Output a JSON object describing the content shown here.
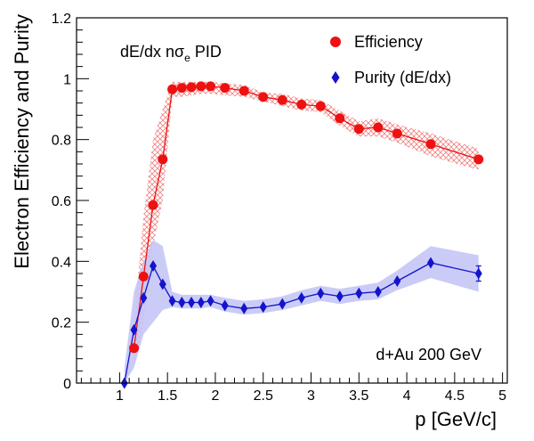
{
  "chart_data": {
    "type": "line",
    "title": "",
    "annotation_top": "dE/dx nσ",
    "annotation_top_sub": "e",
    "annotation_top_suffix": " PID",
    "annotation_bottom": "d+Au 200 GeV",
    "xlabel": "p [GeV/c]",
    "ylabel": "Electron Efficiency and Purity",
    "xlim": [
      0.55,
      5.05
    ],
    "ylim": [
      0,
      1.2
    ],
    "x_ticks": [
      1,
      1.5,
      2,
      2.5,
      3,
      3.5,
      4,
      4.5,
      5
    ],
    "x_tick_labels": [
      "1",
      "1.5",
      "2",
      "2.5",
      "3",
      "3.5",
      "4",
      "4.5",
      "5"
    ],
    "y_ticks": [
      0,
      0.2,
      0.4,
      0.6,
      0.8,
      1,
      1.2
    ],
    "y_tick_labels": [
      "0",
      "0.2",
      "0.4",
      "0.6",
      "0.8",
      "1",
      "1.2"
    ],
    "grid": false,
    "legend_position": "top-right",
    "series": [
      {
        "name": "Efficiency",
        "color": "#ee1111",
        "marker": "circle",
        "band_style": "hatched",
        "x": [
          1.15,
          1.25,
          1.35,
          1.45,
          1.55,
          1.65,
          1.75,
          1.85,
          1.95,
          2.1,
          2.3,
          2.5,
          2.7,
          2.9,
          3.1,
          3.3,
          3.5,
          3.7,
          3.9,
          4.25,
          4.75
        ],
        "y": [
          0.115,
          0.35,
          0.585,
          0.735,
          0.965,
          0.97,
          0.972,
          0.975,
          0.975,
          0.97,
          0.96,
          0.94,
          0.93,
          0.915,
          0.91,
          0.87,
          0.835,
          0.84,
          0.82,
          0.785,
          0.735
        ],
        "band_low": [
          0.05,
          0.2,
          0.45,
          0.6,
          0.94,
          0.94,
          0.945,
          0.95,
          0.95,
          0.945,
          0.94,
          0.925,
          0.91,
          0.895,
          0.89,
          0.845,
          0.81,
          0.81,
          0.79,
          0.745,
          0.7
        ],
        "band_high": [
          0.2,
          0.55,
          0.8,
          0.9,
          0.99,
          0.99,
          0.99,
          0.99,
          0.99,
          0.985,
          0.98,
          0.955,
          0.95,
          0.935,
          0.93,
          0.895,
          0.86,
          0.87,
          0.85,
          0.82,
          0.77
        ]
      },
      {
        "name": "Purity (dE/dx)",
        "color": "#1414cc",
        "marker": "diamond",
        "band_style": "filled",
        "x": [
          1.05,
          1.15,
          1.25,
          1.35,
          1.45,
          1.55,
          1.65,
          1.75,
          1.85,
          1.95,
          2.1,
          2.3,
          2.5,
          2.7,
          2.9,
          3.1,
          3.3,
          3.5,
          3.7,
          3.9,
          4.25,
          4.75
        ],
        "y": [
          0.0,
          0.175,
          0.28,
          0.385,
          0.325,
          0.27,
          0.265,
          0.265,
          0.265,
          0.27,
          0.255,
          0.245,
          0.25,
          0.26,
          0.28,
          0.295,
          0.285,
          0.295,
          0.3,
          0.335,
          0.395,
          0.36
        ],
        "band_low": [
          0.0,
          0.05,
          0.16,
          0.2,
          0.24,
          0.25,
          0.245,
          0.245,
          0.245,
          0.25,
          0.235,
          0.225,
          0.23,
          0.24,
          0.255,
          0.27,
          0.26,
          0.27,
          0.275,
          0.305,
          0.345,
          0.3
        ],
        "band_high": [
          0.05,
          0.3,
          0.4,
          0.47,
          0.45,
          0.3,
          0.29,
          0.29,
          0.29,
          0.29,
          0.28,
          0.27,
          0.275,
          0.285,
          0.305,
          0.32,
          0.31,
          0.32,
          0.33,
          0.37,
          0.45,
          0.42
        ],
        "error_x": 4.75,
        "error_low": 0.335,
        "error_high": 0.385
      }
    ]
  }
}
